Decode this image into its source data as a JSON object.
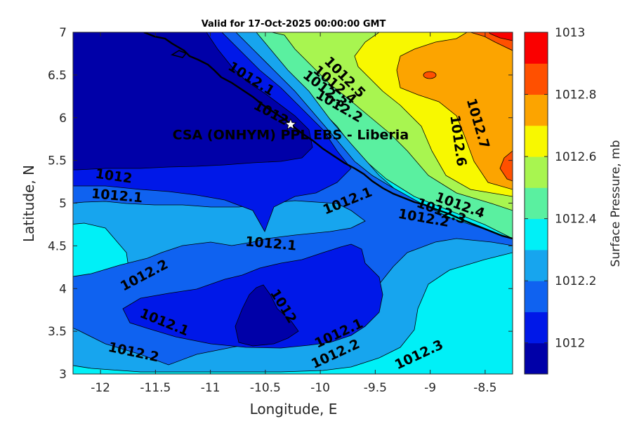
{
  "chart_data": {
    "type": "heatmap",
    "title": "Valid for 17-Oct-2025 00:00:00 GMT",
    "xlabel": "Longitude, E",
    "ylabel": "Latitude, N",
    "colorbar_label": "Surface Pressure, mb",
    "xlim": [
      -12.25,
      -8.25
    ],
    "ylim": [
      3,
      7
    ],
    "xticks": [
      -12,
      -11.5,
      -11,
      -10.5,
      -10,
      -9.5,
      -9,
      -8.5
    ],
    "xtick_labels": [
      "-12",
      "-11.5",
      "-11",
      "-10.5",
      "-10",
      "-9.5",
      "-9",
      "-8.5"
    ],
    "yticks": [
      3,
      3.5,
      4,
      4.5,
      5,
      5.5,
      6,
      6.5,
      7
    ],
    "ytick_labels": [
      "3",
      "3.5",
      "4",
      "4.5",
      "5",
      "5.5",
      "6",
      "6.5",
      "7"
    ],
    "colorbar_range": [
      1011.9,
      1013
    ],
    "colorbar_ticks": [
      1012,
      1012.2,
      1012.4,
      1012.6,
      1012.8,
      1013
    ],
    "colorbar_tick_labels": [
      "1012",
      "1012.2",
      "1012.4",
      "1012.6",
      "1012.8",
      "1013"
    ],
    "levels": [
      1011.9,
      1012.0,
      1012.1,
      1012.2,
      1012.3,
      1012.4,
      1012.5,
      1012.6,
      1012.7,
      1012.8,
      1012.9,
      1013.0
    ],
    "colors": [
      "#0000a8",
      "#0018e8",
      "#0f62f0",
      "#17a5ee",
      "#00f0f7",
      "#5af0a0",
      "#a8f550",
      "#f8f800",
      "#fca400",
      "#ff5000",
      "#fa0000",
      "#a80000"
    ],
    "contour_labels": [
      {
        "text": "1012.5",
        "lon": -9.78,
        "lat": 6.47,
        "angle": 45
      },
      {
        "text": "1012.4",
        "lon": -9.87,
        "lat": 6.38,
        "angle": 40
      },
      {
        "text": "1012.3",
        "lon": -9.96,
        "lat": 6.33,
        "angle": 38
      },
      {
        "text": "1012.2",
        "lon": -9.83,
        "lat": 6.13,
        "angle": 30
      },
      {
        "text": "1012.1",
        "lon": -10.63,
        "lat": 6.45,
        "angle": 32
      },
      {
        "text": "1012",
        "lon": -10.45,
        "lat": 6.05,
        "angle": 28
      },
      {
        "text": "1012.7",
        "lon": -8.57,
        "lat": 5.93,
        "angle": 74
      },
      {
        "text": "1012.6",
        "lon": -8.75,
        "lat": 5.73,
        "angle": 82
      },
      {
        "text": "1012",
        "lon": -11.88,
        "lat": 5.31,
        "angle": 8
      },
      {
        "text": "1012.1",
        "lon": -11.85,
        "lat": 5.08,
        "angle": 5
      },
      {
        "text": "1012.1",
        "lon": -9.75,
        "lat": 5.02,
        "angle": -22
      },
      {
        "text": "1012.4",
        "lon": -8.73,
        "lat": 4.97,
        "angle": 20
      },
      {
        "text": "1012.3",
        "lon": -8.9,
        "lat": 4.9,
        "angle": 20
      },
      {
        "text": "1012.2",
        "lon": -9.06,
        "lat": 4.82,
        "angle": 10
      },
      {
        "text": "1012.1",
        "lon": -10.45,
        "lat": 4.52,
        "angle": 5
      },
      {
        "text": "1012.2",
        "lon": -11.6,
        "lat": 4.15,
        "angle": -28
      },
      {
        "text": "1012",
        "lon": -10.34,
        "lat": 3.79,
        "angle": 58
      },
      {
        "text": "1012.1",
        "lon": -11.42,
        "lat": 3.6,
        "angle": 22
      },
      {
        "text": "1012.2",
        "lon": -11.7,
        "lat": 3.25,
        "angle": 12
      },
      {
        "text": "1012.1",
        "lon": -9.83,
        "lat": 3.47,
        "angle": -25
      },
      {
        "text": "1012.2",
        "lon": -9.86,
        "lat": 3.23,
        "angle": -25
      },
      {
        "text": "1012.3",
        "lon": -9.1,
        "lat": 3.22,
        "angle": -25
      }
    ],
    "annotation": {
      "text": "CSA (ONHYM) PPL EBS  - Liberia",
      "lon": -10.27,
      "lat": 5.92
    }
  }
}
